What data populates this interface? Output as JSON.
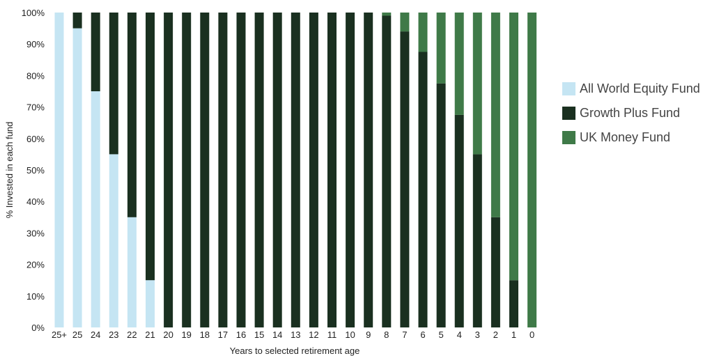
{
  "chart_data": {
    "type": "bar",
    "stacked": true,
    "categories": [
      "25+",
      "25",
      "24",
      "23",
      "22",
      "21",
      "20",
      "19",
      "18",
      "17",
      "16",
      "15",
      "14",
      "13",
      "12",
      "11",
      "10",
      "9",
      "8",
      "7",
      "6",
      "5",
      "4",
      "3",
      "2",
      "1",
      "0"
    ],
    "series": [
      {
        "name": "All World Equity Fund",
        "color": "#c5e5f3",
        "values": [
          100,
          95,
          75,
          55,
          35,
          15,
          0,
          0,
          0,
          0,
          0,
          0,
          0,
          0,
          0,
          0,
          0,
          0,
          0,
          0,
          0,
          0,
          0,
          0,
          0,
          0,
          0
        ]
      },
      {
        "name": "Growth Plus Fund",
        "color": "#1a3020",
        "values": [
          0,
          5,
          25,
          45,
          65,
          85,
          100,
          100,
          100,
          100,
          100,
          100,
          100,
          100,
          100,
          100,
          100,
          100,
          99,
          94,
          87.5,
          77.5,
          67.5,
          55,
          35,
          15,
          0
        ]
      },
      {
        "name": "UK Money Fund",
        "color": "#3f7a48",
        "values": [
          0,
          0,
          0,
          0,
          0,
          0,
          0,
          0,
          0,
          0,
          0,
          0,
          0,
          0,
          0,
          0,
          0,
          0,
          1,
          6,
          12.5,
          22.5,
          32.5,
          45,
          65,
          85,
          100
        ]
      }
    ],
    "ylim": [
      0,
      100
    ],
    "yticks": [
      "0%",
      "10%",
      "20%",
      "30%",
      "40%",
      "50%",
      "60%",
      "70%",
      "80%",
      "90%",
      "100%"
    ],
    "xlabel": "Years to selected retirement age",
    "ylabel": "% Invested in each fund",
    "legend": "right",
    "grid": false
  }
}
